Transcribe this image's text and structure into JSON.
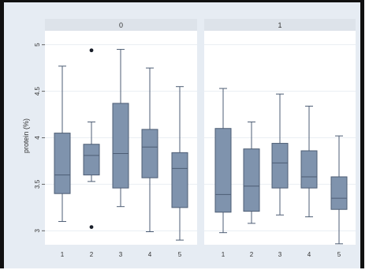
{
  "chart_data": {
    "type": "box",
    "ylabel": "protein (%)",
    "xlabel": "",
    "ylim": [
      2.85,
      5.15
    ],
    "y_ticks": [
      3,
      3.5,
      4,
      4.5,
      5
    ],
    "y_tick_labels": [
      "3",
      "3.5",
      "4",
      "4.5",
      "5"
    ],
    "grid": true,
    "colors": {
      "box_fill": "#7f93ad",
      "box_stroke": "#4d5d74",
      "background": "#e6ecf3",
      "panel": "#ffffff",
      "strip": "#dde3ea",
      "grid": "#eaeef3"
    },
    "panels": [
      {
        "label": "0",
        "categories": [
          "1",
          "2",
          "3",
          "4",
          "5"
        ],
        "boxes": [
          {
            "whislo": 3.1,
            "q1": 3.4,
            "med": 3.6,
            "q3": 4.05,
            "whishi": 4.77,
            "outliers": []
          },
          {
            "whislo": 3.53,
            "q1": 3.6,
            "med": 3.81,
            "q3": 3.93,
            "whishi": 4.17,
            "outliers": [
              3.04,
              4.94
            ]
          },
          {
            "whislo": 3.26,
            "q1": 3.46,
            "med": 3.83,
            "q3": 4.37,
            "whishi": 4.95,
            "outliers": []
          },
          {
            "whislo": 2.99,
            "q1": 3.57,
            "med": 3.9,
            "q3": 4.09,
            "whishi": 4.75,
            "outliers": []
          },
          {
            "whislo": 2.9,
            "q1": 3.25,
            "med": 3.67,
            "q3": 3.84,
            "whishi": 4.55,
            "outliers": []
          }
        ]
      },
      {
        "label": "1",
        "categories": [
          "1",
          "2",
          "3",
          "4",
          "5"
        ],
        "boxes": [
          {
            "whislo": 2.98,
            "q1": 3.2,
            "med": 3.39,
            "q3": 4.1,
            "whishi": 4.53,
            "outliers": []
          },
          {
            "whislo": 3.08,
            "q1": 3.21,
            "med": 3.48,
            "q3": 3.88,
            "whishi": 4.17,
            "outliers": []
          },
          {
            "whislo": 3.17,
            "q1": 3.46,
            "med": 3.73,
            "q3": 3.94,
            "whishi": 4.47,
            "outliers": []
          },
          {
            "whislo": 3.15,
            "q1": 3.46,
            "med": 3.58,
            "q3": 3.86,
            "whishi": 4.34,
            "outliers": []
          },
          {
            "whislo": 2.86,
            "q1": 3.23,
            "med": 3.35,
            "q3": 3.58,
            "whishi": 4.02,
            "outliers": []
          }
        ]
      }
    ]
  }
}
